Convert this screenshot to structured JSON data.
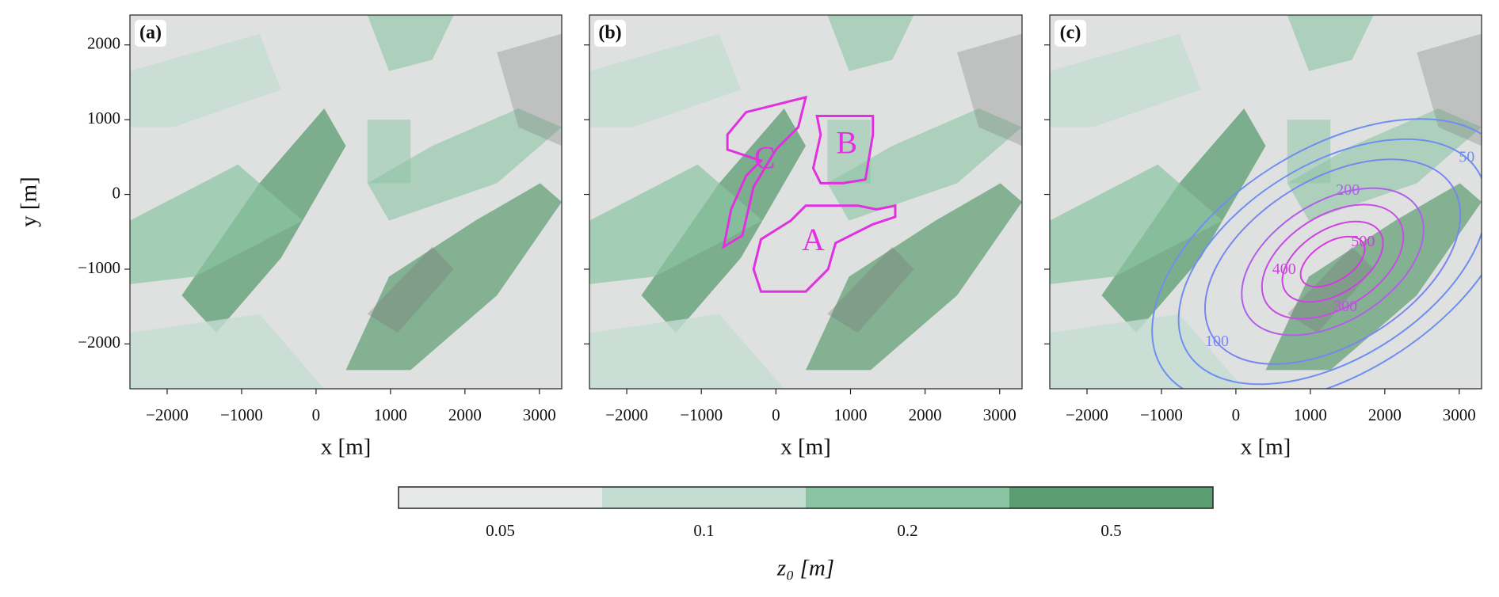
{
  "chart_data": [
    {
      "type": "map",
      "panel_label": "(a)",
      "xlabel": "x [m]",
      "ylabel": "y [m]",
      "xlim": [
        -2500,
        3300
      ],
      "ylim": [
        -2600,
        2400
      ],
      "xticks": [
        {
          "value": -2000,
          "label": "−2000"
        },
        {
          "value": -1000,
          "label": "−1000"
        },
        0,
        1000,
        2000,
        3000
      ],
      "yticks": [
        {
          "value": -2000,
          "label": "−2000"
        },
        {
          "value": -1000,
          "label": "−1000"
        },
        0,
        1000,
        2000
      ]
    },
    {
      "type": "map",
      "panel_label": "(b)",
      "xlabel": "x [m]",
      "xlim": [
        -2500,
        3300
      ],
      "ylim": [
        -2600,
        2400
      ],
      "xticks": [
        {
          "value": -2000,
          "label": "−2000"
        },
        {
          "value": -1000,
          "label": "−1000"
        },
        0,
        1000,
        2000,
        3000
      ],
      "yticks": [
        -2000,
        -1000,
        0,
        1000,
        2000
      ],
      "annotations": [
        "A",
        "B",
        "C"
      ],
      "annotation_color": "#e030e0"
    },
    {
      "type": "contour",
      "panel_label": "(c)",
      "xlabel": "x [m]",
      "xlim": [
        -2500,
        3300
      ],
      "ylim": [
        -2600,
        2400
      ],
      "xticks": [
        {
          "value": -2000,
          "label": "−2000"
        },
        {
          "value": -1000,
          "label": "−1000"
        },
        0,
        1000,
        2000,
        3000
      ],
      "yticks": [
        -2000,
        -1000,
        0,
        1000,
        2000
      ],
      "contour_levels": [
        0,
        50,
        100,
        200,
        300,
        400,
        500
      ],
      "contour_colors": [
        "#6f8ff0",
        "#6f8ff0",
        "#7a86f0",
        "#b060e8",
        "#c84ce6",
        "#d040e4",
        "#d838e0"
      ]
    }
  ],
  "colorbar": {
    "label": "z₀ [m]",
    "ticks": [
      0.05,
      0.1,
      0.2,
      0.5
    ],
    "colors": [
      "#e6e8e8",
      "#c4ddd3",
      "#8ac4a3",
      "#5b9c70"
    ]
  }
}
